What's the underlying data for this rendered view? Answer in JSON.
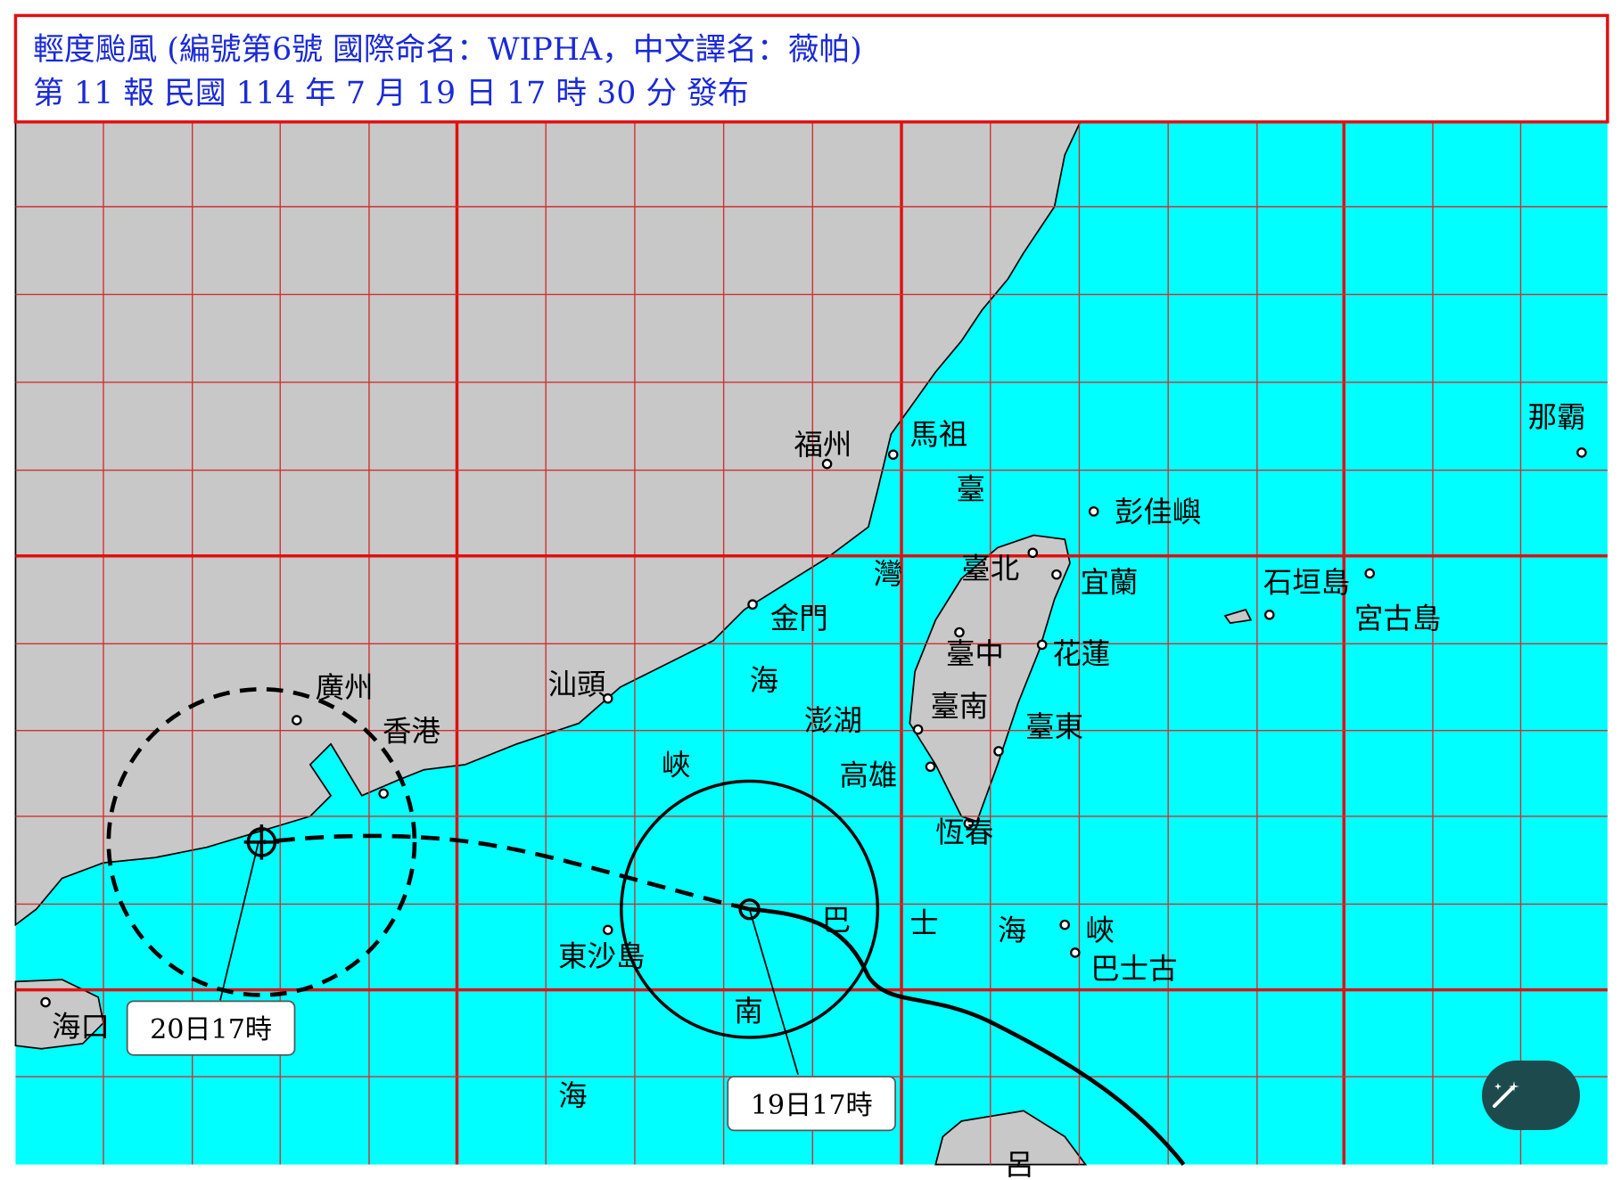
{
  "header": {
    "line1": "輕度颱風 (編號第6號 國際命名：WIPHA，中文譯名：薇帕)",
    "line2": "第 11 報 民國 114 年 7 月 19 日 17 時 30 分 發布"
  },
  "places": [
    "福州",
    "馬祖",
    "臺",
    "灣",
    "海",
    "峽",
    "彭佳嶼",
    "臺北",
    "宜蘭",
    "金門",
    "臺中",
    "花蓮",
    "臺南",
    "澎湖",
    "臺東",
    "高雄",
    "恆春",
    "石垣島",
    "宮古島",
    "那霸",
    "廣州",
    "香港",
    "汕頭",
    "東沙島",
    "巴",
    "士",
    "海",
    "峽",
    "巴士古",
    "南",
    "海",
    "海口",
    "呂"
  ],
  "forecast_labels": [
    "19日17時",
    "20日17時"
  ]
}
